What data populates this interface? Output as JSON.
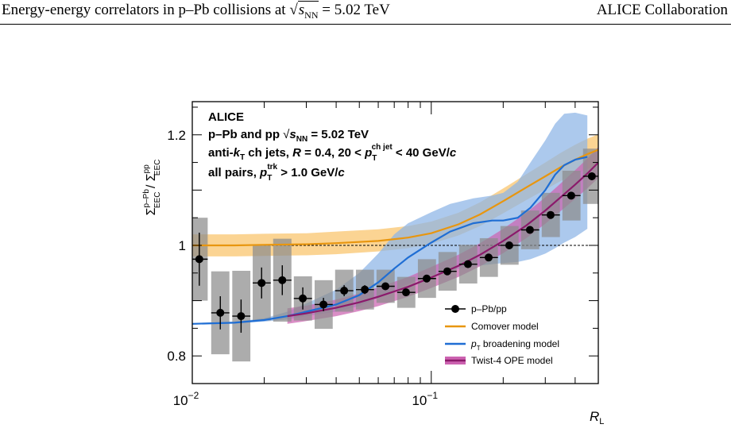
{
  "header": {
    "title_prefix": "Energy-energy correlators in p–Pb collisions at ",
    "sqrt_var": "s",
    "sqrt_sub": "NN",
    "title_suffix": " = 5.02 TeV",
    "collaboration": "ALICE Collaboration"
  },
  "chart_data": {
    "type": "line",
    "xscale": "log",
    "xlim": [
      0.01,
      0.5
    ],
    "ylim": [
      0.75,
      1.26
    ],
    "xlabel": {
      "var": "R",
      "sub": "L"
    },
    "ylabel": {
      "main": "Σ",
      "sup1": "p–Pb",
      "sub1": "EEC",
      "sep": " / ",
      "sup2": "pp",
      "sub2": "EEC"
    },
    "x_ticks": [
      {
        "value": 0.01,
        "base": "10",
        "exp": "−2"
      },
      {
        "value": 0.1,
        "base": "10",
        "exp": "−1"
      }
    ],
    "y_ticks": [
      {
        "value": 0.8,
        "label": "0.8"
      },
      {
        "value": 1.0,
        "label": "1"
      },
      {
        "value": 1.2,
        "label": "1.2"
      }
    ],
    "reference_line": 1.0,
    "annotations": {
      "experiment": "ALICE",
      "line2": {
        "pre": "p–Pb and pp  ",
        "sqrt_var": "s",
        "sqrt_sub": "NN",
        "post": " = 5.02 TeV"
      },
      "line3": {
        "pre": "anti-",
        "k": "k",
        "k_sub": "T",
        "mid": " ch jets,  ",
        "R": "R",
        "mid2": " = 0.4, 20 <  ",
        "p": "p",
        "p_sub": "T",
        "p_sup": "ch jet",
        "post": " < 40 GeV/",
        "c": "c"
      },
      "line4": {
        "pre": "all pairs,  ",
        "p": "p",
        "p_sub": "T",
        "p_sup": "trk",
        "post": " > 1.0 GeV/",
        "c": "c"
      }
    },
    "series": [
      {
        "name": "p–Pb/pp",
        "kind": "data",
        "color": "#000000",
        "sys_color": "#8c8c8c",
        "points": [
          {
            "x": 0.0107,
            "y": 0.975,
            "ey": 0.048,
            "sy": 0.075,
            "xl": 0.0099,
            "xh": 0.0116
          },
          {
            "x": 0.0131,
            "y": 0.878,
            "ey": 0.03,
            "sy": 0.075,
            "xl": 0.012,
            "xh": 0.0143
          },
          {
            "x": 0.016,
            "y": 0.872,
            "ey": 0.03,
            "sy": 0.082,
            "xl": 0.0147,
            "xh": 0.0175
          },
          {
            "x": 0.0195,
            "y": 0.932,
            "ey": 0.028,
            "sy": 0.068,
            "xl": 0.0179,
            "xh": 0.0213
          },
          {
            "x": 0.0238,
            "y": 0.937,
            "ey": 0.027,
            "sy": 0.075,
            "xl": 0.0218,
            "xh": 0.026
          },
          {
            "x": 0.029,
            "y": 0.904,
            "ey": 0.02,
            "sy": 0.04,
            "xl": 0.0266,
            "xh": 0.0317
          },
          {
            "x": 0.0354,
            "y": 0.893,
            "ey": 0.012,
            "sy": 0.044,
            "xl": 0.0325,
            "xh": 0.0387
          },
          {
            "x": 0.0432,
            "y": 0.918,
            "ey": 0.01,
            "sy": 0.038,
            "xl": 0.0396,
            "xh": 0.0472
          },
          {
            "x": 0.0527,
            "y": 0.92,
            "ey": 0.008,
            "sy": 0.036,
            "xl": 0.0484,
            "xh": 0.0576
          },
          {
            "x": 0.0643,
            "y": 0.926,
            "ey": 0.006,
            "sy": 0.03,
            "xl": 0.059,
            "xh": 0.0703
          },
          {
            "x": 0.0784,
            "y": 0.915,
            "ey": 0.005,
            "sy": 0.028,
            "xl": 0.072,
            "xh": 0.0858
          },
          {
            "x": 0.0957,
            "y": 0.94,
            "ey": 0.004,
            "sy": 0.035,
            "xl": 0.0879,
            "xh": 0.1047
          },
          {
            "x": 0.1167,
            "y": 0.953,
            "ey": 0.004,
            "sy": 0.035,
            "xl": 0.1072,
            "xh": 0.1277
          },
          {
            "x": 0.1424,
            "y": 0.966,
            "ey": 0.004,
            "sy": 0.035,
            "xl": 0.1308,
            "xh": 0.1558
          },
          {
            "x": 0.1738,
            "y": 0.978,
            "ey": 0.004,
            "sy": 0.035,
            "xl": 0.1596,
            "xh": 0.1901
          },
          {
            "x": 0.212,
            "y": 1.0,
            "ey": 0.004,
            "sy": 0.035,
            "xl": 0.1947,
            "xh": 0.232
          },
          {
            "x": 0.2587,
            "y": 1.028,
            "ey": 0.005,
            "sy": 0.035,
            "xl": 0.2376,
            "xh": 0.283
          },
          {
            "x": 0.3157,
            "y": 1.055,
            "ey": 0.006,
            "sy": 0.04,
            "xl": 0.2899,
            "xh": 0.3453
          },
          {
            "x": 0.3851,
            "y": 1.09,
            "ey": 0.006,
            "sy": 0.045,
            "xl": 0.3537,
            "xh": 0.4213
          },
          {
            "x": 0.4699,
            "y": 1.125,
            "ey": 0.007,
            "sy": 0.05,
            "xl": 0.4315,
            "xh": 0.5
          }
        ]
      },
      {
        "name": "Comover model",
        "kind": "band",
        "color": "#e8960f",
        "band_color": "#f9c46a",
        "x": [
          0.01,
          0.015,
          0.02,
          0.03,
          0.04,
          0.06,
          0.08,
          0.1,
          0.13,
          0.16,
          0.2,
          0.25,
          0.3,
          0.35,
          0.4,
          0.45,
          0.5
        ],
        "y": [
          1.0,
          1.0,
          1.001,
          1.002,
          1.004,
          1.008,
          1.014,
          1.022,
          1.038,
          1.056,
          1.08,
          1.105,
          1.125,
          1.142,
          1.155,
          1.165,
          1.173
        ],
        "lo": [
          0.98,
          0.98,
          0.981,
          0.982,
          0.984,
          0.989,
          0.995,
          1.003,
          1.018,
          1.035,
          1.058,
          1.082,
          1.101,
          1.117,
          1.129,
          1.138,
          1.145
        ],
        "hi": [
          1.02,
          1.02,
          1.021,
          1.022,
          1.025,
          1.029,
          1.035,
          1.043,
          1.059,
          1.078,
          1.103,
          1.129,
          1.15,
          1.168,
          1.182,
          1.193,
          1.201
        ]
      },
      {
        "name": "broadening model",
        "kind": "band",
        "color": "#1f6ed4",
        "band_color": "#8cb4e6",
        "legend_prefix": "p",
        "legend_sub": "T",
        "x": [
          0.01,
          0.015,
          0.02,
          0.025,
          0.03,
          0.04,
          0.05,
          0.06,
          0.07,
          0.08,
          0.1,
          0.12,
          0.15,
          0.18,
          0.2,
          0.23,
          0.26,
          0.3,
          0.33,
          0.36,
          0.4,
          0.45
        ],
        "y": [
          0.858,
          0.86,
          0.865,
          0.872,
          0.88,
          0.893,
          0.91,
          0.933,
          0.958,
          0.978,
          1.005,
          1.025,
          1.04,
          1.045,
          1.045,
          1.05,
          1.068,
          1.1,
          1.128,
          1.145,
          1.155,
          1.16
        ],
        "lo": [
          0.857,
          0.859,
          0.862,
          0.866,
          0.872,
          0.88,
          0.89,
          0.905,
          0.918,
          0.93,
          0.945,
          0.955,
          0.962,
          0.966,
          0.968,
          0.97,
          0.975,
          0.985,
          0.995,
          1.005,
          1.015,
          1.03
        ],
        "hi": [
          0.859,
          0.862,
          0.868,
          0.88,
          0.895,
          0.92,
          0.95,
          0.985,
          1.02,
          1.04,
          1.06,
          1.075,
          1.085,
          1.09,
          1.095,
          1.115,
          1.15,
          1.19,
          1.22,
          1.238,
          1.24,
          1.235
        ]
      },
      {
        "name": "Twist-4 OPE model",
        "kind": "band",
        "color": "#8b1a6b",
        "band_color": "#cc62b0",
        "x": [
          0.025,
          0.03,
          0.04,
          0.05,
          0.06,
          0.08,
          0.1,
          0.13,
          0.16,
          0.2,
          0.25,
          0.3,
          0.35,
          0.4,
          0.45,
          0.5
        ],
        "y": [
          0.872,
          0.877,
          0.887,
          0.897,
          0.907,
          0.925,
          0.942,
          0.963,
          0.983,
          1.008,
          1.036,
          1.063,
          1.088,
          1.11,
          1.13,
          1.15
        ],
        "lo": [
          0.858,
          0.863,
          0.872,
          0.881,
          0.89,
          0.907,
          0.923,
          0.943,
          0.962,
          0.986,
          1.013,
          1.039,
          1.063,
          1.084,
          1.103,
          1.122
        ],
        "hi": [
          0.886,
          0.891,
          0.902,
          0.913,
          0.924,
          0.943,
          0.961,
          0.983,
          1.004,
          1.03,
          1.059,
          1.087,
          1.113,
          1.136,
          1.157,
          1.178
        ]
      }
    ],
    "legend": {
      "placement": "bottom-right"
    }
  }
}
